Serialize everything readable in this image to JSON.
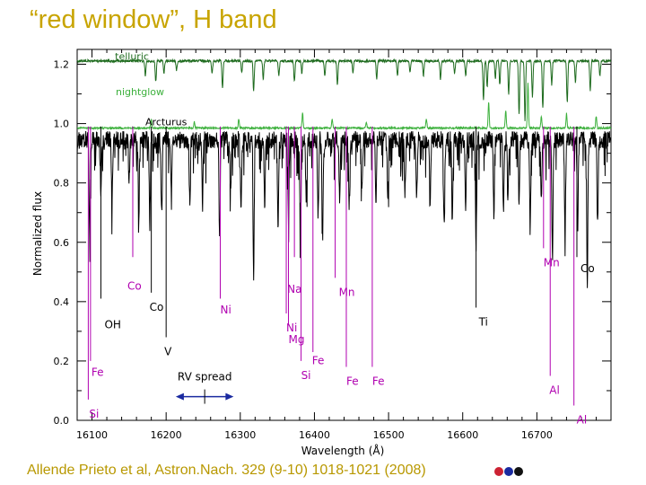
{
  "slide": {
    "title": "“red window”, H band",
    "citation": "Allende Prieto et al, Astron.Nach. 329 (9-10) 1018-1021 (2008)",
    "dots": [
      "#cc2233",
      "#1a2aa0",
      "#111111"
    ]
  },
  "colors": {
    "title": "#c8a400",
    "telluric": "#1e6b1e",
    "nightglow": "#3cb03c",
    "arcturus": "#000000",
    "lines": "#b000b0",
    "rv": "#1a2aa0"
  },
  "chart_data": {
    "type": "line",
    "xlabel": "Wavelength (Å)",
    "ylabel": "Normalized flux",
    "xlim": [
      16080,
      16800
    ],
    "ylim": [
      0.0,
      1.25
    ],
    "x_ticks": [
      16100,
      16200,
      16300,
      16400,
      16500,
      16600,
      16700
    ],
    "x_tick_labels": [
      "16100",
      "16200",
      "16300",
      "16400",
      "16500",
      "16600",
      "16700"
    ],
    "y_ticks": [
      0.0,
      0.2,
      0.4,
      0.6,
      0.8,
      1.0,
      1.2
    ],
    "y_tick_labels": [
      "0.0",
      "0.2",
      "0.4",
      "0.6",
      "0.8",
      "1.0",
      "1.2"
    ],
    "series": [
      {
        "name": "telluric",
        "label": "telluric",
        "color": "#1e6b1e",
        "continuum": 1.215,
        "absorption": [
          [
            16172,
            0.05
          ],
          [
            16186,
            0.07
          ],
          [
            16197,
            0.04
          ],
          [
            16214,
            0.03
          ],
          [
            16262,
            0.04
          ],
          [
            16276,
            0.09
          ],
          [
            16302,
            0.04
          ],
          [
            16318,
            0.1
          ],
          [
            16331,
            0.06
          ],
          [
            16352,
            0.05
          ],
          [
            16373,
            0.07
          ],
          [
            16383,
            0.04
          ],
          [
            16414,
            0.05
          ],
          [
            16431,
            0.08
          ],
          [
            16452,
            0.04
          ],
          [
            16484,
            0.06
          ],
          [
            16512,
            0.05
          ],
          [
            16529,
            0.04
          ],
          [
            16547,
            0.05
          ],
          [
            16570,
            0.06
          ],
          [
            16589,
            0.04
          ],
          [
            16604,
            0.05
          ],
          [
            16628,
            0.13
          ],
          [
            16633,
            0.09
          ],
          [
            16644,
            0.06
          ],
          [
            16650,
            0.08
          ],
          [
            16662,
            0.11
          ],
          [
            16676,
            0.18
          ],
          [
            16684,
            0.2
          ],
          [
            16694,
            0.12
          ],
          [
            16708,
            0.16
          ],
          [
            16720,
            0.08
          ],
          [
            16741,
            0.14
          ],
          [
            16752,
            0.07
          ],
          [
            16772,
            0.1
          ],
          [
            16785,
            0.05
          ]
        ]
      },
      {
        "name": "nightglow",
        "label": "nightglow",
        "color": "#3cb03c",
        "continuum": 0.985,
        "emission": [
          [
            16180,
            0.03
          ],
          [
            16238,
            0.02
          ],
          [
            16298,
            0.03
          ],
          [
            16384,
            0.05
          ],
          [
            16424,
            0.03
          ],
          [
            16470,
            0.02
          ],
          [
            16551,
            0.03
          ],
          [
            16635,
            0.09
          ],
          [
            16658,
            0.06
          ],
          [
            16688,
            0.15
          ],
          [
            16706,
            0.04
          ],
          [
            16740,
            0.05
          ],
          [
            16780,
            0.04
          ]
        ]
      },
      {
        "name": "Arcturus",
        "label": "Arcturus",
        "color": "#000000",
        "continuum": 0.975,
        "absorption": [
          [
            16097,
            0.35
          ],
          [
            16112,
            0.18
          ],
          [
            16127,
            0.22
          ],
          [
            16150,
            0.15
          ],
          [
            16163,
            0.2
          ],
          [
            16178,
            0.28
          ],
          [
            16194,
            0.25
          ],
          [
            16207,
            0.18
          ],
          [
            16232,
            0.22
          ],
          [
            16249,
            0.2
          ],
          [
            16272,
            0.3
          ],
          [
            16287,
            0.18
          ],
          [
            16301,
            0.24
          ],
          [
            16318,
            0.45
          ],
          [
            16333,
            0.22
          ],
          [
            16351,
            0.3
          ],
          [
            16365,
            0.26
          ],
          [
            16381,
            0.3
          ],
          [
            16389,
            0.22
          ],
          [
            16405,
            0.25
          ],
          [
            16411,
            0.33
          ],
          [
            16434,
            0.2
          ],
          [
            16447,
            0.22
          ],
          [
            16464,
            0.19
          ],
          [
            16483,
            0.22
          ],
          [
            16499,
            0.2
          ],
          [
            16522,
            0.18
          ],
          [
            16538,
            0.2
          ],
          [
            16556,
            0.22
          ],
          [
            16575,
            0.3
          ],
          [
            16586,
            0.28
          ],
          [
            16604,
            0.22
          ],
          [
            16618,
            0.35
          ],
          [
            16642,
            0.25
          ],
          [
            16655,
            0.24
          ],
          [
            16661,
            0.22
          ],
          [
            16676,
            0.2
          ],
          [
            16691,
            0.3
          ],
          [
            16706,
            0.18
          ],
          [
            16721,
            0.42
          ],
          [
            16738,
            0.32
          ],
          [
            16755,
            0.3
          ],
          [
            16768,
            0.5
          ],
          [
            16782,
            0.25
          ]
        ]
      }
    ],
    "line_ids": [
      {
        "label": "Fe",
        "wavelength": 16098,
        "y_bottom": 0.2,
        "label_y": 0.18,
        "dx": 1,
        "dy": 0,
        "color": "#b000b0"
      },
      {
        "label": "Si",
        "wavelength": 16095,
        "y_bottom": 0.07,
        "label_y": 0.04,
        "dx": 1,
        "dy": 0,
        "color": "#b000b0"
      },
      {
        "label": "Co",
        "wavelength": 16155,
        "y_bottom": 0.55,
        "label_y": 0.47,
        "dx": -6,
        "dy": 0,
        "color": "#b000b0"
      },
      {
        "label": "Co",
        "wavelength": 16180,
        "y_bottom": 0.43,
        "label_y": 0.4,
        "dx": -2,
        "dy": 0,
        "color": "#000000"
      },
      {
        "label": "OH",
        "wavelength": 16112,
        "y_bottom": 0.41,
        "label_y": 0.34,
        "dx": 4,
        "dy": 0,
        "color": "#000000"
      },
      {
        "label": "V",
        "wavelength": 16200,
        "y_bottom": 0.28,
        "label_y": 0.25,
        "dx": -2,
        "dy": 0,
        "color": "#000000"
      },
      {
        "label": "Ni",
        "wavelength": 16273,
        "y_bottom": 0.41,
        "label_y": 0.39,
        "dx": 0,
        "dy": 0,
        "color": "#b000b0"
      },
      {
        "label": "Na",
        "wavelength": 16373,
        "y_bottom": 0.55,
        "label_y": 0.46,
        "dx": -8,
        "dy": 0,
        "color": "#b000b0"
      },
      {
        "label": "Ni",
        "wavelength": 16362,
        "y_bottom": 0.36,
        "label_y": 0.33,
        "dx": 0,
        "dy": 0,
        "color": "#b000b0"
      },
      {
        "label": "Mg",
        "wavelength": 16365,
        "y_bottom": 0.32,
        "label_y": 0.29,
        "dx": 0,
        "dy": 0,
        "color": "#b000b0"
      },
      {
        "label": "Fe",
        "wavelength": 16398,
        "y_bottom": 0.23,
        "label_y": 0.22,
        "dx": -1,
        "dy": 0,
        "color": "#b000b0"
      },
      {
        "label": "Si",
        "wavelength": 16382,
        "y_bottom": 0.2,
        "label_y": 0.17,
        "dx": 0,
        "dy": 0,
        "color": "#b000b0"
      },
      {
        "label": "Fe",
        "wavelength": 16443,
        "y_bottom": 0.18,
        "label_y": 0.15,
        "dx": 0,
        "dy": 0,
        "color": "#b000b0"
      },
      {
        "label": "Mn",
        "wavelength": 16428,
        "y_bottom": 0.48,
        "label_y": 0.45,
        "dx": 4,
        "dy": 0,
        "color": "#b000b0"
      },
      {
        "label": "Fe",
        "wavelength": 16478,
        "y_bottom": 0.18,
        "label_y": 0.15,
        "dx": 0,
        "dy": 0,
        "color": "#b000b0"
      },
      {
        "label": "Ti",
        "wavelength": 16618,
        "y_bottom": 0.38,
        "label_y": 0.35,
        "dx": 3,
        "dy": 0,
        "color": "#000000"
      },
      {
        "label": "Mn",
        "wavelength": 16709,
        "y_bottom": 0.58,
        "label_y": 0.55,
        "dx": 0,
        "dy": 0,
        "color": "#b000b0"
      },
      {
        "label": "Co",
        "wavelength": 16754,
        "y_bottom": 0.55,
        "label_y": 0.53,
        "dx": 4,
        "dy": 0,
        "color": "#000000"
      },
      {
        "label": "Al",
        "wavelength": 16718,
        "y_bottom": 0.15,
        "label_y": 0.12,
        "dx": -1,
        "dy": 0,
        "color": "#b000b0"
      },
      {
        "label": "Al",
        "wavelength": 16750,
        "y_bottom": 0.05,
        "label_y": 0.02,
        "dx": 3,
        "dy": 0,
        "color": "#b000b0"
      }
    ],
    "annotations": [
      {
        "type": "double-arrow",
        "label": "RV spread",
        "x_from": 16213,
        "x_to": 16291,
        "y": 0.08,
        "color": "#1a2aa0"
      }
    ]
  }
}
